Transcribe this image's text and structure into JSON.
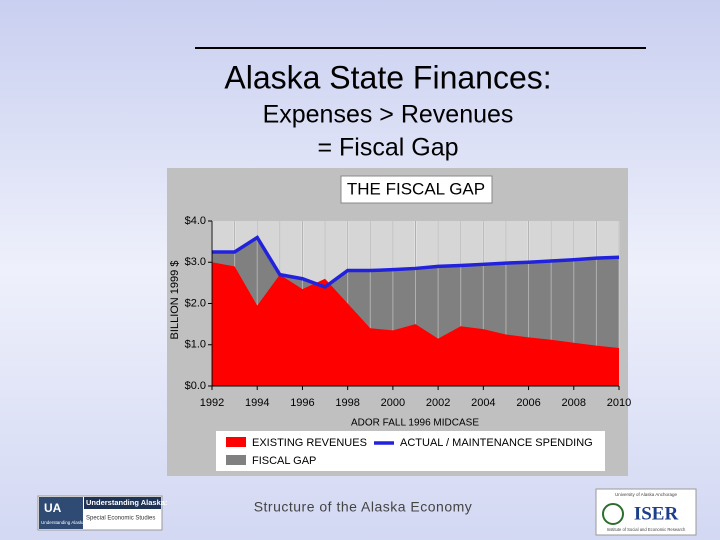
{
  "header": {
    "title": "Alaska State Finances:",
    "subtitle_lines": [
      "Expenses > Revenues",
      "= Fiscal Gap"
    ]
  },
  "chart_data": {
    "type": "area-line",
    "title": "THE FISCAL GAP",
    "y_label": "BILLION 1999 $",
    "x_label": "ADOR FALL 1996 MIDCASE",
    "x": [
      1992,
      1993,
      1994,
      1995,
      1996,
      1997,
      1998,
      1999,
      2000,
      2001,
      2002,
      2003,
      2004,
      2005,
      2006,
      2007,
      2008,
      2009,
      2010
    ],
    "series": [
      {
        "name": "EXISTING REVENUES",
        "color": "#ff0000",
        "style": "area",
        "values": [
          3.0,
          2.9,
          1.95,
          2.7,
          2.35,
          2.6,
          2.0,
          1.4,
          1.35,
          1.5,
          1.15,
          1.45,
          1.38,
          1.25,
          1.18,
          1.12,
          1.05,
          0.98,
          0.92
        ]
      },
      {
        "name": "ACTUAL / MAINTENANCE SPENDING",
        "color": "#2222dd",
        "style": "line",
        "values": [
          3.25,
          3.25,
          3.6,
          2.7,
          2.6,
          2.4,
          2.8,
          2.8,
          2.82,
          2.85,
          2.9,
          2.92,
          2.95,
          2.98,
          3.0,
          3.03,
          3.06,
          3.1,
          3.12
        ]
      }
    ],
    "gap": {
      "name": "FISCAL GAP",
      "color": "#808080"
    },
    "xlim": [
      1992,
      2010
    ],
    "xticks": [
      1992,
      1994,
      1996,
      1998,
      2000,
      2002,
      2004,
      2006,
      2008,
      2010
    ],
    "ylim": [
      0,
      4
    ],
    "yticks": [
      {
        "value": 0,
        "label": "$0.0"
      },
      {
        "value": 1,
        "label": "$1.0"
      },
      {
        "value": 2,
        "label": "$2.0"
      },
      {
        "value": 3,
        "label": "$3.0"
      },
      {
        "value": 4,
        "label": "$4.0"
      }
    ],
    "grid": true
  },
  "footer": {
    "caption": "Structure of the Alaska Economy",
    "left_logo": {
      "mark": "UA",
      "title": "Understanding Alaska:",
      "subtitle": "Special Economic Studies",
      "small": "Understanding Alaska"
    },
    "right_logo": {
      "top": "University of Alaska Anchorage",
      "name": "ISER",
      "bottom": "Institute of Social and Economic Research"
    }
  }
}
